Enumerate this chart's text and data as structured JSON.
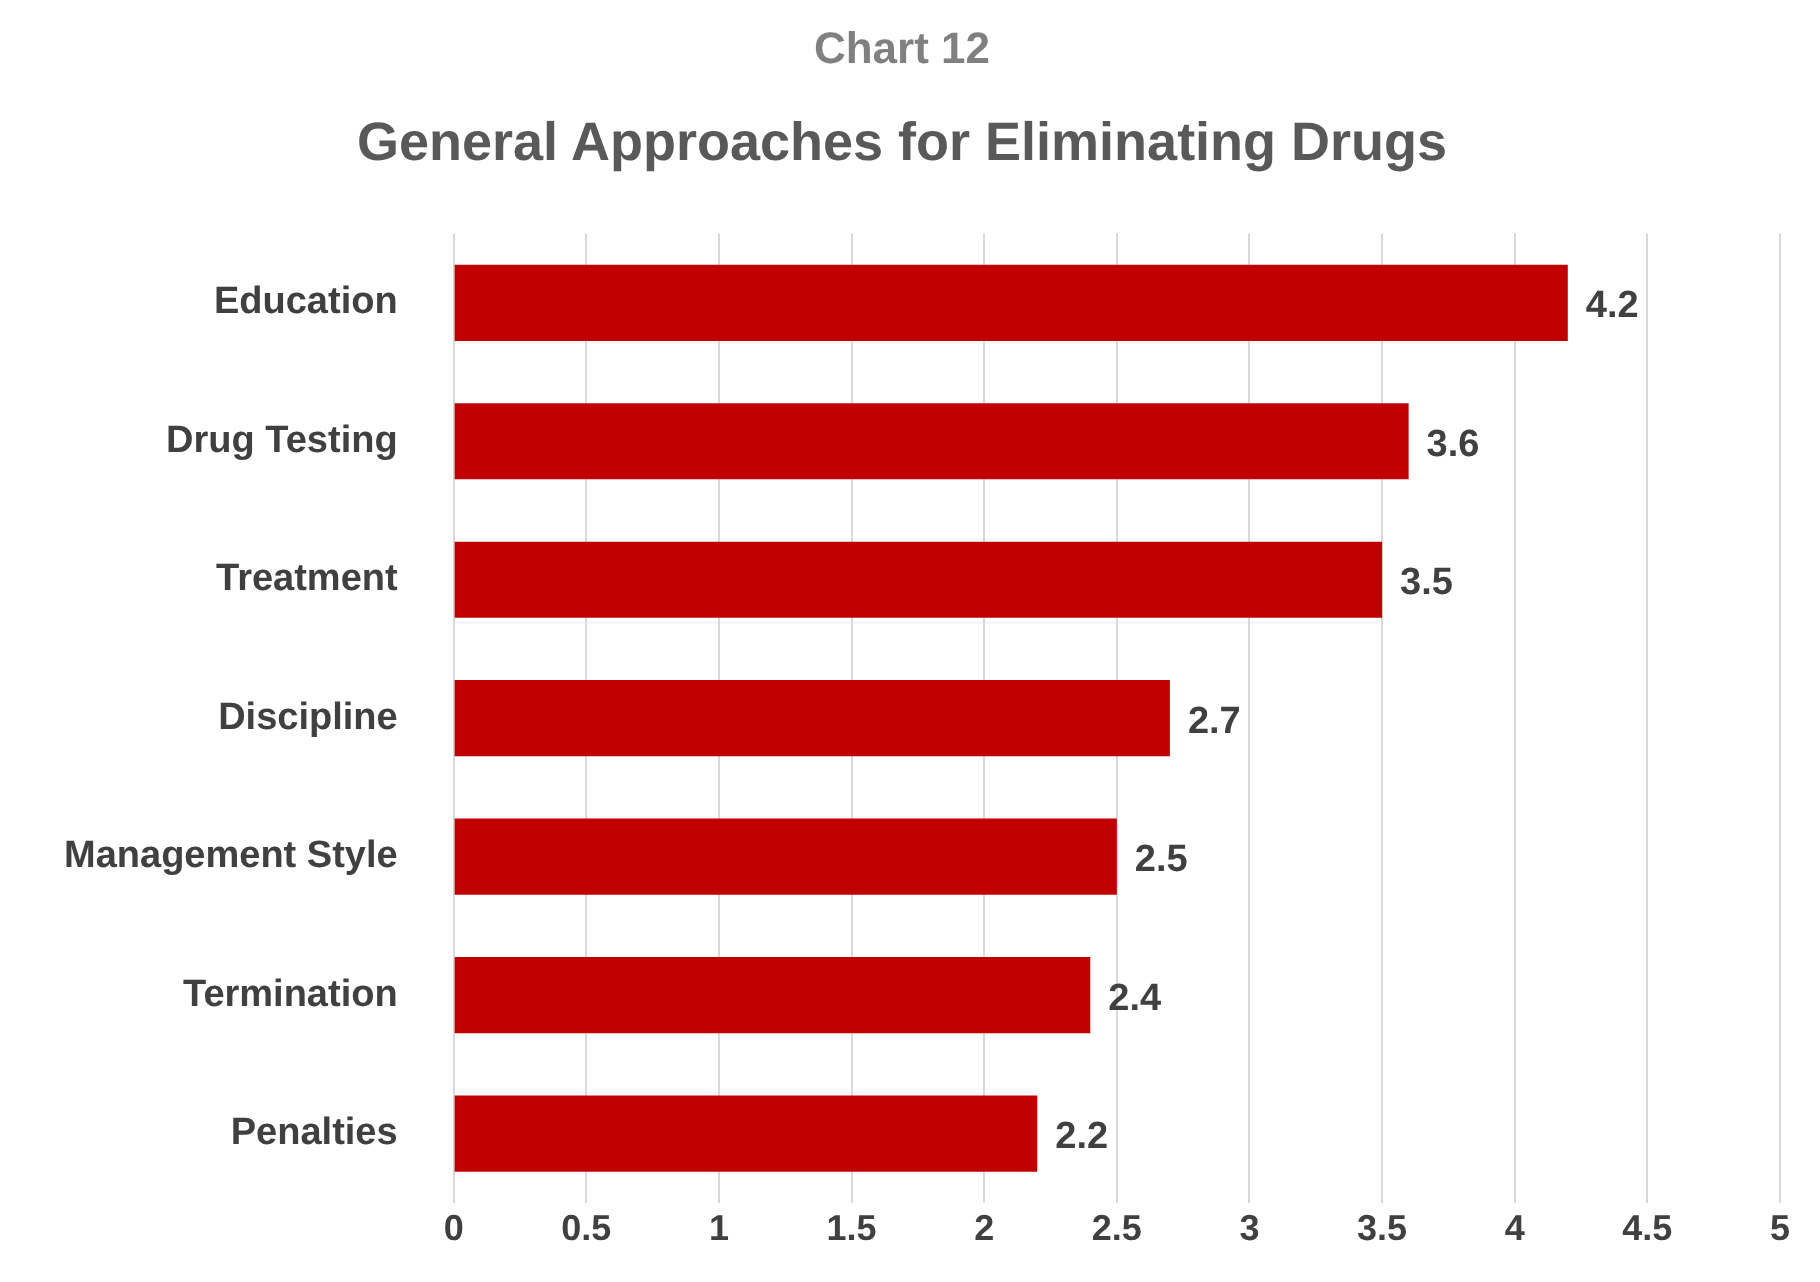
{
  "chart_data": {
    "type": "bar",
    "orientation": "horizontal",
    "title": "Chart 12",
    "subtitle": "General Approaches for Eliminating Drugs",
    "categories": [
      "Education",
      "Drug Testing",
      "Treatment",
      "Discipline",
      "Management Style",
      "Termination",
      "Penalties"
    ],
    "values": [
      4.2,
      3.6,
      3.5,
      2.7,
      2.5,
      2.4,
      2.2
    ],
    "color": "#c00000",
    "xlim": [
      0,
      5
    ],
    "xticks": [
      0,
      0.5,
      1,
      1.5,
      2,
      2.5,
      3,
      3.5,
      4,
      4.5,
      5
    ],
    "grid": "x",
    "data_labels": true,
    "legend": false
  }
}
